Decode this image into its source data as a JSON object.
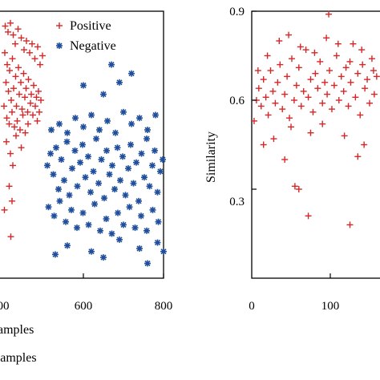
{
  "chart_data": [
    {
      "type": "scatter",
      "title": "",
      "xlabel": "samples",
      "ylabel": "",
      "xlim": [
        400,
        800
      ],
      "ylim": [
        0,
        0.9
      ],
      "xticks": [
        600,
        800
      ],
      "xtick_labels_visible": [
        "00",
        "600",
        "800"
      ],
      "grid": false,
      "legend_position": "top-right",
      "series": [
        {
          "name": "Positive",
          "marker": "plus",
          "color": "#d62728",
          "points": [
            [
              405,
              0.85
            ],
            [
              412,
              0.83
            ],
            [
              418,
              0.86
            ],
            [
              425,
              0.82
            ],
            [
              430,
              0.79
            ],
            [
              437,
              0.84
            ],
            [
              445,
              0.81
            ],
            [
              452,
              0.77
            ],
            [
              458,
              0.8
            ],
            [
              466,
              0.76
            ],
            [
              472,
              0.79
            ],
            [
              479,
              0.74
            ],
            [
              486,
              0.78
            ],
            [
              492,
              0.72
            ],
            [
              498,
              0.75
            ],
            [
              404,
              0.76
            ],
            [
              410,
              0.72
            ],
            [
              416,
              0.7
            ],
            [
              423,
              0.74
            ],
            [
              431,
              0.68
            ],
            [
              438,
              0.71
            ],
            [
              444,
              0.66
            ],
            [
              451,
              0.69
            ],
            [
              457,
              0.64
            ],
            [
              463,
              0.67
            ],
            [
              470,
              0.62
            ],
            [
              476,
              0.65
            ],
            [
              483,
              0.61
            ],
            [
              488,
              0.63
            ],
            [
              494,
              0.6
            ],
            [
              407,
              0.66
            ],
            [
              413,
              0.63
            ],
            [
              420,
              0.6
            ],
            [
              426,
              0.64
            ],
            [
              433,
              0.58
            ],
            [
              440,
              0.62
            ],
            [
              447,
              0.57
            ],
            [
              454,
              0.61
            ],
            [
              461,
              0.56
            ],
            [
              468,
              0.59
            ],
            [
              474,
              0.55
            ],
            [
              480,
              0.58
            ],
            [
              485,
              0.53
            ],
            [
              490,
              0.56
            ],
            [
              402,
              0.58
            ],
            [
              409,
              0.54
            ],
            [
              415,
              0.52
            ],
            [
              422,
              0.56
            ],
            [
              428,
              0.51
            ],
            [
              435,
              0.53
            ],
            [
              442,
              0.5
            ],
            [
              449,
              0.55
            ],
            [
              455,
              0.49
            ],
            [
              462,
              0.52
            ],
            [
              408,
              0.46
            ],
            [
              418,
              0.42
            ],
            [
              424,
              0.38
            ],
            [
              415,
              0.31
            ],
            [
              422,
              0.26
            ],
            [
              419,
              0.14
            ],
            [
              403,
              0.23
            ],
            [
              432,
              0.48
            ],
            [
              445,
              0.44
            ]
          ]
        },
        {
          "name": "Negative",
          "marker": "star",
          "color": "#1f4e9c",
          "points": [
            [
              510,
              0.38
            ],
            [
              518,
              0.42
            ],
            [
              525,
              0.35
            ],
            [
              532,
              0.44
            ],
            [
              538,
              0.3
            ],
            [
              545,
              0.4
            ],
            [
              552,
              0.33
            ],
            [
              559,
              0.46
            ],
            [
              565,
              0.28
            ],
            [
              572,
              0.37
            ],
            [
              579,
              0.43
            ],
            [
              585,
              0.31
            ],
            [
              592,
              0.39
            ],
            [
              598,
              0.45
            ],
            [
              605,
              0.34
            ],
            [
              612,
              0.41
            ],
            [
              618,
              0.29
            ],
            [
              625,
              0.36
            ],
            [
              632,
              0.47
            ],
            [
              638,
              0.32
            ],
            [
              645,
              0.4
            ],
            [
              652,
              0.27
            ],
            [
              658,
              0.43
            ],
            [
              665,
              0.35
            ],
            [
              672,
              0.38
            ],
            [
              678,
              0.3
            ],
            [
              685,
              0.44
            ],
            [
              692,
              0.33
            ],
            [
              698,
              0.41
            ],
            [
              705,
              0.28
            ],
            [
              712,
              0.37
            ],
            [
              718,
              0.45
            ],
            [
              725,
              0.32
            ],
            [
              732,
              0.39
            ],
            [
              738,
              0.26
            ],
            [
              745,
              0.42
            ],
            [
              752,
              0.34
            ],
            [
              758,
              0.47
            ],
            [
              765,
              0.31
            ],
            [
              772,
              0.38
            ],
            [
              778,
              0.43
            ],
            [
              785,
              0.29
            ],
            [
              792,
              0.36
            ],
            [
              798,
              0.4
            ],
            [
              513,
              0.24
            ],
            [
              527,
              0.21
            ],
            [
              541,
              0.26
            ],
            [
              556,
              0.19
            ],
            [
              570,
              0.23
            ],
            [
              584,
              0.17
            ],
            [
              599,
              0.22
            ],
            [
              613,
              0.18
            ],
            [
              628,
              0.25
            ],
            [
              642,
              0.16
            ],
            [
              657,
              0.2
            ],
            [
              671,
              0.15
            ],
            [
              686,
              0.22
            ],
            [
              700,
              0.18
            ],
            [
              715,
              0.24
            ],
            [
              729,
              0.17
            ],
            [
              744,
              0.21
            ],
            [
              758,
              0.16
            ],
            [
              773,
              0.23
            ],
            [
              787,
              0.19
            ],
            [
              520,
              0.5
            ],
            [
              540,
              0.52
            ],
            [
              560,
              0.49
            ],
            [
              580,
              0.54
            ],
            [
              600,
              0.51
            ],
            [
              620,
              0.55
            ],
            [
              640,
              0.5
            ],
            [
              660,
              0.53
            ],
            [
              680,
              0.49
            ],
            [
              700,
              0.56
            ],
            [
              720,
              0.52
            ],
            [
              740,
              0.54
            ],
            [
              760,
              0.5
            ],
            [
              780,
              0.55
            ],
            [
              650,
              0.62
            ],
            [
              690,
              0.66
            ],
            [
              720,
              0.69
            ],
            [
              670,
              0.72
            ],
            [
              600,
              0.65
            ],
            [
              560,
              0.11
            ],
            [
              620,
              0.09
            ],
            [
              690,
              0.13
            ],
            [
              740,
              0.1
            ],
            [
              785,
              0.12
            ],
            [
              530,
              0.08
            ],
            [
              650,
              0.07
            ],
            [
              760,
              0.05
            ],
            [
              800,
              0.09
            ]
          ]
        }
      ]
    },
    {
      "type": "scatter",
      "title": "",
      "xlabel": "",
      "ylabel": "Similarity",
      "xlim": [
        0,
        200
      ],
      "ylim": [
        0,
        0.9
      ],
      "xticks": [
        0,
        100
      ],
      "yticks": [
        0.3,
        0.6,
        0.9
      ],
      "grid": false,
      "series": [
        {
          "name": "",
          "marker": "plus",
          "color": "#d62728",
          "points": [
            [
              3,
              0.53
            ],
            [
              6,
              0.6
            ],
            [
              9,
              0.64
            ],
            [
              12,
              0.58
            ],
            [
              15,
              0.67
            ],
            [
              18,
              0.61
            ],
            [
              21,
              0.55
            ],
            [
              24,
              0.7
            ],
            [
              27,
              0.63
            ],
            [
              30,
              0.59
            ],
            [
              33,
              0.66
            ],
            [
              36,
              0.72
            ],
            [
              39,
              0.57
            ],
            [
              42,
              0.62
            ],
            [
              45,
              0.68
            ],
            [
              48,
              0.54
            ],
            [
              51,
              0.74
            ],
            [
              54,
              0.6
            ],
            [
              57,
              0.65
            ],
            [
              60,
              0.71
            ],
            [
              63,
              0.58
            ],
            [
              66,
              0.63
            ],
            [
              69,
              0.77
            ],
            [
              72,
              0.61
            ],
            [
              75,
              0.67
            ],
            [
              78,
              0.56
            ],
            [
              81,
              0.69
            ],
            [
              84,
              0.64
            ],
            [
              87,
              0.73
            ],
            [
              90,
              0.59
            ],
            [
              93,
              0.66
            ],
            [
              96,
              0.62
            ],
            [
              99,
              0.7
            ],
            [
              102,
              0.57
            ],
            [
              105,
              0.65
            ],
            [
              108,
              0.75
            ],
            [
              111,
              0.6
            ],
            [
              114,
              0.68
            ],
            [
              117,
              0.63
            ],
            [
              120,
              0.71
            ],
            [
              123,
              0.58
            ],
            [
              126,
              0.66
            ],
            [
              129,
              0.79
            ],
            [
              132,
              0.61
            ],
            [
              135,
              0.69
            ],
            [
              138,
              0.55
            ],
            [
              141,
              0.72
            ],
            [
              144,
              0.64
            ],
            [
              147,
              0.67
            ],
            [
              150,
              0.59
            ],
            [
              153,
              0.74
            ],
            [
              156,
              0.62
            ],
            [
              159,
              0.68
            ],
            [
              162,
              0.57
            ],
            [
              8,
              0.7
            ],
            [
              20,
              0.75
            ],
            [
              35,
              0.8
            ],
            [
              47,
              0.82
            ],
            [
              62,
              0.78
            ],
            [
              80,
              0.76
            ],
            [
              95,
              0.81
            ],
            [
              110,
              0.79
            ],
            [
              125,
              0.73
            ],
            [
              140,
              0.77
            ],
            [
              155,
              0.7
            ],
            [
              28,
              0.47
            ],
            [
              42,
              0.4
            ],
            [
              55,
              0.31
            ],
            [
              60,
              0.3
            ],
            [
              72,
              0.21
            ],
            [
              98,
              0.89
            ],
            [
              125,
              0.18
            ],
            [
              143,
              0.45
            ],
            [
              160,
              0.5
            ],
            [
              15,
              0.45
            ],
            [
              90,
              0.52
            ],
            [
              118,
              0.48
            ],
            [
              135,
              0.41
            ],
            [
              50,
              0.51
            ],
            [
              75,
              0.49
            ]
          ]
        }
      ]
    }
  ],
  "legend": {
    "positive_label": "Positive",
    "negative_label": "Negative"
  },
  "left_chart": {
    "xtick_partial": "00",
    "xtick_600": "600",
    "xtick_800": "800",
    "xlabel": "amples",
    "extra_label": "samples"
  },
  "right_chart": {
    "ylabel": "Similarity",
    "ytick_09": "0.9",
    "ytick_06": "0.6",
    "ytick_03": "0.3",
    "xtick_0": "0",
    "xtick_100": "100"
  }
}
